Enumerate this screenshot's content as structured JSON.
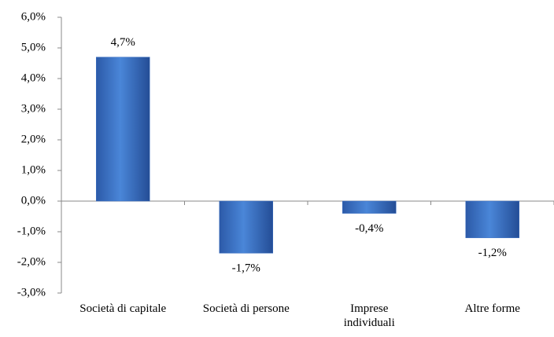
{
  "chart_data": {
    "type": "bar",
    "categories": [
      "Società di capitale",
      "Società di persone",
      "Imprese\nindividuali",
      "Altre forme"
    ],
    "values": [
      4.7,
      -1.7,
      -0.4,
      -1.2
    ],
    "value_labels": [
      "4,7%",
      "-1,7%",
      "-0,4%",
      "-1,2%"
    ],
    "color": "#3b6fc2",
    "ylim": [
      -3,
      6
    ],
    "yticks": [
      {
        "value": -3,
        "label": "-3,0%"
      },
      {
        "value": -2,
        "label": "-2,0%"
      },
      {
        "value": -1,
        "label": "-1,0%"
      },
      {
        "value": 0,
        "label": "0,0%"
      },
      {
        "value": 1,
        "label": "1,0%"
      },
      {
        "value": 2,
        "label": "2,0%"
      },
      {
        "value": 3,
        "label": "3,0%"
      },
      {
        "value": 4,
        "label": "4,0%"
      },
      {
        "value": 5,
        "label": "5,0%"
      },
      {
        "value": 6,
        "label": "6,0%"
      }
    ],
    "grid": false
  }
}
